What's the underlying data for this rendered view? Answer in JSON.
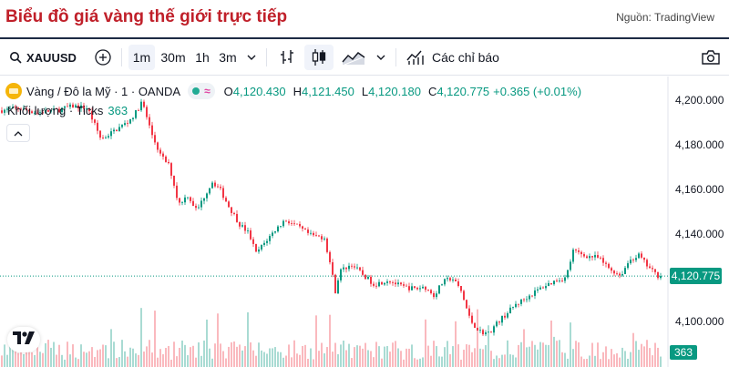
{
  "header": {
    "title": "Biểu đồ giá vàng thế giới trực tiếp",
    "source": "Nguồn: TradingView"
  },
  "toolbar": {
    "symbol": "XAUUSD",
    "intervals": [
      "1m",
      "30m",
      "1h",
      "3m"
    ],
    "active_interval": "1m",
    "indicators_label": "Các chỉ báo"
  },
  "legend": {
    "title": "Vàng / Đô la Mỹ · 1 · OANDA",
    "open_label": "O",
    "open": "4,120.430",
    "high_label": "H",
    "high": "4,121.450",
    "low_label": "L",
    "low": "4,120.180",
    "close_label": "C",
    "close": "4,120.775",
    "change": "+0.365 (+0.01%)"
  },
  "volume_legend": {
    "name": "Khối lượng · Ticks",
    "value": "363"
  },
  "price_axis": {
    "labels": [
      "4,200.000",
      "4,180.000",
      "4,160.000",
      "4,140.000",
      "4,100.000"
    ],
    "current_price": "4,120.775",
    "current_volume": "363"
  },
  "colors": {
    "up": "#089981",
    "down": "#f23645",
    "title_red": "#c0202a"
  },
  "chart_data": {
    "type": "candlestick",
    "ylim": [
      4090,
      4205
    ],
    "y_ticks": [
      4200,
      4180,
      4160,
      4140,
      4100
    ],
    "last_price": 4120.775,
    "price_path": [
      [
        0,
        4195
      ],
      [
        20,
        4196
      ],
      [
        40,
        4194
      ],
      [
        60,
        4195
      ],
      [
        80,
        4197
      ],
      [
        95,
        4196
      ],
      [
        110,
        4182
      ],
      [
        125,
        4186
      ],
      [
        140,
        4190
      ],
      [
        148,
        4194
      ],
      [
        155,
        4199
      ],
      [
        165,
        4185
      ],
      [
        175,
        4175
      ],
      [
        185,
        4170
      ],
      [
        195,
        4153
      ],
      [
        205,
        4157
      ],
      [
        215,
        4150
      ],
      [
        225,
        4158
      ],
      [
        232,
        4163
      ],
      [
        240,
        4160
      ],
      [
        250,
        4152
      ],
      [
        262,
        4144
      ],
      [
        272,
        4140
      ],
      [
        280,
        4131
      ],
      [
        290,
        4136
      ],
      [
        300,
        4141
      ],
      [
        312,
        4146
      ],
      [
        325,
        4143
      ],
      [
        340,
        4139
      ],
      [
        355,
        4138
      ],
      [
        362,
        4125
      ],
      [
        367,
        4114
      ],
      [
        372,
        4123
      ],
      [
        385,
        4126
      ],
      [
        398,
        4121
      ],
      [
        410,
        4117
      ],
      [
        425,
        4119
      ],
      [
        440,
        4116
      ],
      [
        455,
        4115
      ],
      [
        465,
        4116
      ],
      [
        475,
        4112
      ],
      [
        485,
        4118
      ],
      [
        495,
        4120
      ],
      [
        505,
        4114
      ],
      [
        515,
        4101
      ],
      [
        525,
        4096
      ],
      [
        535,
        4095
      ],
      [
        545,
        4100
      ],
      [
        555,
        4104
      ],
      [
        565,
        4108
      ],
      [
        580,
        4112
      ],
      [
        595,
        4116
      ],
      [
        610,
        4119
      ],
      [
        620,
        4120
      ],
      [
        628,
        4132
      ],
      [
        640,
        4130
      ],
      [
        655,
        4129
      ],
      [
        668,
        4124
      ],
      [
        680,
        4121
      ],
      [
        690,
        4128
      ],
      [
        700,
        4130
      ],
      [
        710,
        4125
      ],
      [
        720,
        4121
      ],
      [
        726,
        4120.775
      ]
    ]
  }
}
